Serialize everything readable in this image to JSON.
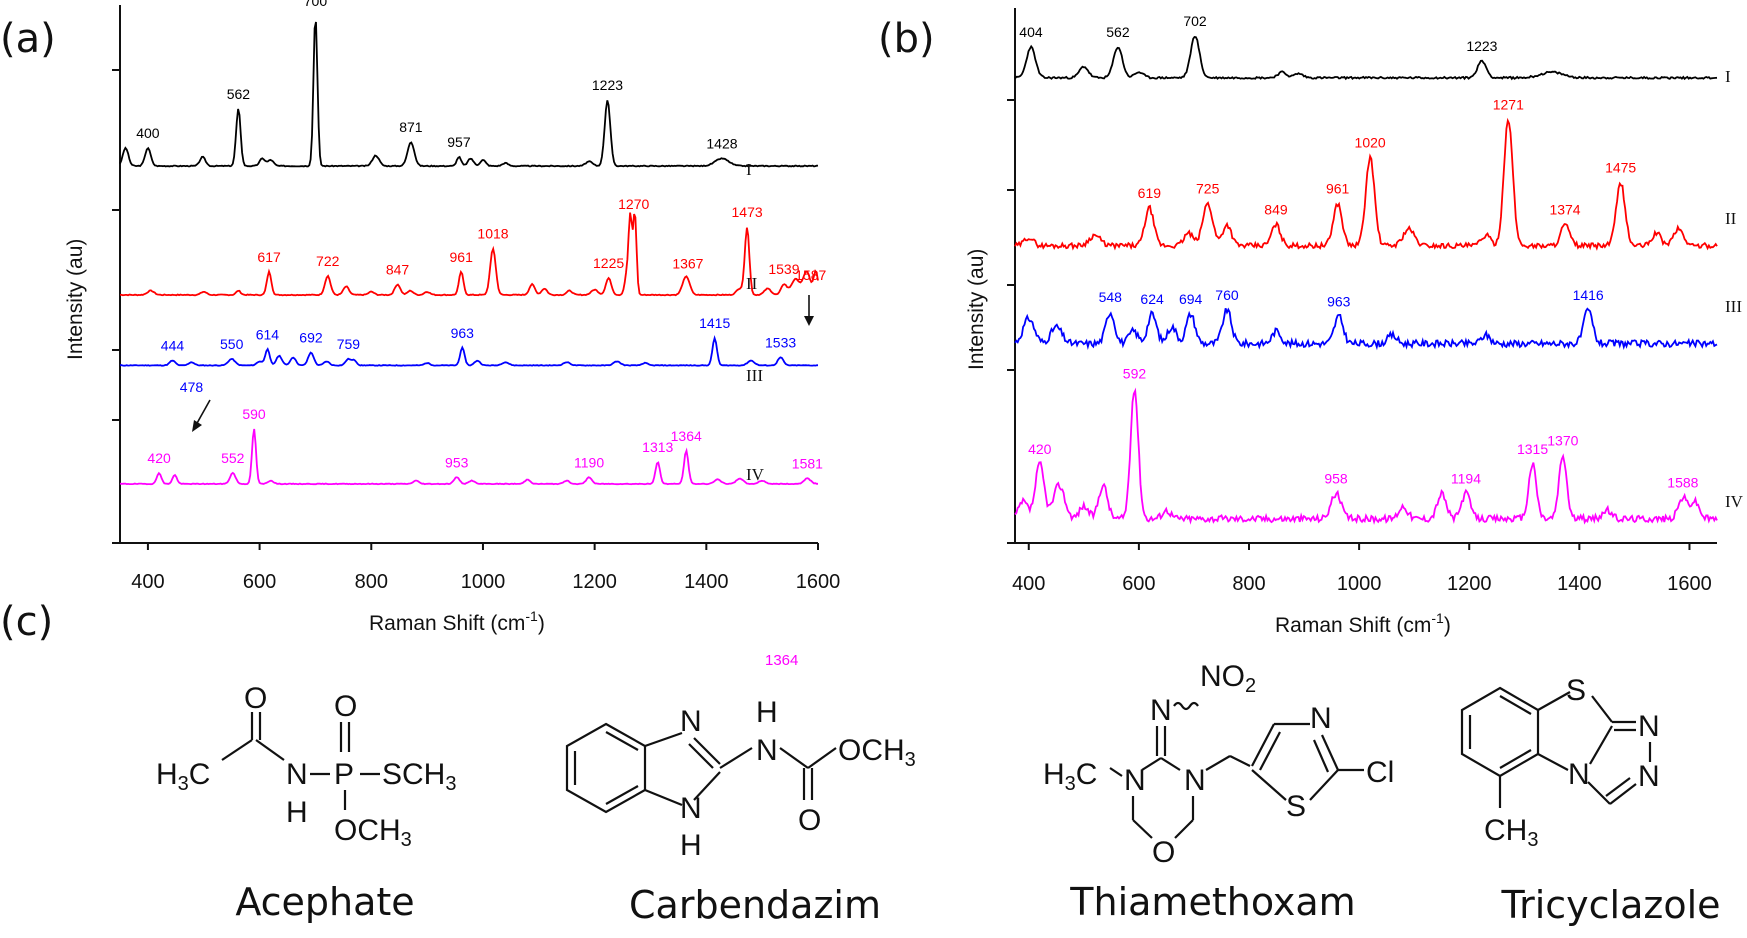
{
  "panel_labels": {
    "a": "(a)",
    "b": "(b)",
    "c": "(c)"
  },
  "stray_label": {
    "text": "1364",
    "color": "#ff00ff"
  },
  "chart_data": [
    {
      "type": "line",
      "panel": "(a)",
      "xlabel": "Raman Shift (cm-1)",
      "xlabel_main": "Raman Shift (cm",
      "xlabel_sup": "-1",
      "xlabel_close": ")",
      "ylabel": "Intensity (au)",
      "xlim": [
        350,
        1600
      ],
      "xticks": [
        400,
        600,
        800,
        1000,
        1200,
        1400,
        1600
      ],
      "grid": false,
      "series": [
        {
          "name": "I",
          "color": "#000000",
          "baseline": 0.06,
          "noise": 0.003,
          "seed": 3,
          "peaks": [
            [
              360,
              0.12,
              5
            ],
            [
              400,
              0.12,
              5
            ],
            [
              498,
              0.06,
              5
            ],
            [
              562,
              0.38,
              4
            ],
            [
              605,
              0.05,
              5
            ],
            [
              620,
              0.04,
              5
            ],
            [
              700,
              1.0,
              3.5
            ],
            [
              808,
              0.07,
              6
            ],
            [
              871,
              0.16,
              6
            ],
            [
              957,
              0.06,
              4
            ],
            [
              978,
              0.05,
              5
            ],
            [
              1000,
              0.04,
              5
            ],
            [
              1040,
              0.02,
              5
            ],
            [
              1190,
              0.03,
              6
            ],
            [
              1223,
              0.44,
              5
            ],
            [
              1428,
              0.05,
              12
            ]
          ],
          "labels": [
            [
              400,
              "400"
            ],
            [
              562,
              "562"
            ],
            [
              700,
              "700"
            ],
            [
              871,
              "871"
            ],
            [
              957,
              "957"
            ],
            [
              1223,
              "1223"
            ],
            [
              1428,
              "1428"
            ]
          ]
        },
        {
          "name": "II",
          "color": "#ff0000",
          "baseline": 0.02,
          "noise": 0.004,
          "seed": 7,
          "peaks": [
            [
              405,
              0.04,
              6
            ],
            [
              500,
              0.03,
              5
            ],
            [
              562,
              0.04,
              4
            ],
            [
              617,
              0.22,
              4
            ],
            [
              722,
              0.18,
              5
            ],
            [
              755,
              0.08,
              5
            ],
            [
              800,
              0.03,
              5
            ],
            [
              847,
              0.1,
              5
            ],
            [
              870,
              0.04,
              5
            ],
            [
              900,
              0.03,
              5
            ],
            [
              961,
              0.22,
              4
            ],
            [
              1018,
              0.44,
              5
            ],
            [
              1088,
              0.1,
              5
            ],
            [
              1110,
              0.06,
              5
            ],
            [
              1155,
              0.04,
              5
            ],
            [
              1200,
              0.05,
              6
            ],
            [
              1225,
              0.16,
              5
            ],
            [
              1258,
              0.2,
              4
            ],
            [
              1264,
              0.7,
              3
            ],
            [
              1272,
              0.78,
              3
            ],
            [
              1360,
              0.1,
              5
            ],
            [
              1367,
              0.12,
              5
            ],
            [
              1460,
              0.06,
              6
            ],
            [
              1473,
              0.64,
              4
            ],
            [
              1510,
              0.06,
              6
            ],
            [
              1539,
              0.1,
              5
            ],
            [
              1560,
              0.15,
              8
            ],
            [
              1580,
              0.22,
              6
            ],
            [
              1596,
              0.22,
              4
            ]
          ],
          "labels": [
            [
              617,
              "617"
            ],
            [
              722,
              "722"
            ],
            [
              847,
              "847"
            ],
            [
              961,
              "961"
            ],
            [
              1018,
              "1018"
            ],
            [
              1225,
              "1225"
            ],
            [
              1270,
              "1270"
            ],
            [
              1367,
              "1367"
            ],
            [
              1473,
              "1473"
            ],
            [
              1539,
              "1539"
            ],
            [
              1587,
              "1587"
            ]
          ]
        },
        {
          "name": "III",
          "color": "#0000ff",
          "baseline": 0.02,
          "noise": 0.004,
          "seed": 11,
          "peaks": [
            [
              444,
              0.06,
              5
            ],
            [
              478,
              0.04,
              5
            ],
            [
              550,
              0.08,
              6
            ],
            [
              600,
              0.05,
              5
            ],
            [
              614,
              0.2,
              4
            ],
            [
              635,
              0.12,
              5
            ],
            [
              660,
              0.1,
              5
            ],
            [
              692,
              0.16,
              5
            ],
            [
              720,
              0.05,
              5
            ],
            [
              759,
              0.08,
              5
            ],
            [
              770,
              0.06,
              4
            ],
            [
              900,
              0.03,
              5
            ],
            [
              963,
              0.22,
              4
            ],
            [
              990,
              0.06,
              5
            ],
            [
              1040,
              0.04,
              6
            ],
            [
              1150,
              0.04,
              6
            ],
            [
              1240,
              0.05,
              6
            ],
            [
              1290,
              0.03,
              5
            ],
            [
              1415,
              0.34,
              4
            ],
            [
              1480,
              0.06,
              6
            ],
            [
              1533,
              0.1,
              5
            ]
          ],
          "labels": [
            [
              444,
              "444"
            ],
            [
              478,
              "478"
            ],
            [
              550,
              "550"
            ],
            [
              614,
              "614"
            ],
            [
              692,
              "692"
            ],
            [
              759,
              "759"
            ],
            [
              963,
              "963"
            ],
            [
              1415,
              "1415"
            ],
            [
              1533,
              "1533"
            ]
          ]
        },
        {
          "name": "IV",
          "color": "#ff00ff",
          "baseline": 0.01,
          "noise": 0.003,
          "seed": 19,
          "peaks": [
            [
              420,
              0.1,
              4
            ],
            [
              448,
              0.08,
              4
            ],
            [
              552,
              0.1,
              5
            ],
            [
              590,
              0.5,
              3.5
            ],
            [
              620,
              0.03,
              5
            ],
            [
              880,
              0.03,
              5
            ],
            [
              953,
              0.06,
              5
            ],
            [
              980,
              0.03,
              5
            ],
            [
              1080,
              0.04,
              5
            ],
            [
              1150,
              0.03,
              5
            ],
            [
              1190,
              0.06,
              5
            ],
            [
              1313,
              0.2,
              4
            ],
            [
              1364,
              0.3,
              4
            ],
            [
              1420,
              0.04,
              6
            ],
            [
              1460,
              0.05,
              6
            ],
            [
              1500,
              0.03,
              6
            ],
            [
              1581,
              0.05,
              6
            ]
          ],
          "labels": [
            [
              420,
              "420"
            ],
            [
              552,
              "552"
            ],
            [
              590,
              "590"
            ],
            [
              953,
              "953"
            ],
            [
              1190,
              "1190"
            ],
            [
              1313,
              "1313"
            ],
            [
              1364,
              "1364"
            ],
            [
              1581,
              "1581"
            ]
          ]
        }
      ]
    },
    {
      "type": "line",
      "panel": "(b)",
      "xlabel": "Raman Shift (cm-1)",
      "xlabel_main": "Raman Shift (cm",
      "xlabel_sup": "-1",
      "xlabel_close": ")",
      "ylabel": "Intensity (au)",
      "xlim": [
        375,
        1650
      ],
      "xticks": [
        400,
        600,
        800,
        1000,
        1200,
        1400,
        1600
      ],
      "grid": false,
      "series": [
        {
          "name": "I",
          "color": "#000000",
          "baseline": 0.03,
          "noise": 0.007,
          "seed": 23,
          "peaks": [
            [
              404,
              0.22,
              8
            ],
            [
              500,
              0.08,
              8
            ],
            [
              562,
              0.22,
              8
            ],
            [
              600,
              0.04,
              8
            ],
            [
              702,
              0.3,
              8
            ],
            [
              860,
              0.04,
              8
            ],
            [
              890,
              0.03,
              8
            ],
            [
              1223,
              0.12,
              8
            ],
            [
              1350,
              0.04,
              20
            ]
          ],
          "labels": [
            [
              404,
              "404"
            ],
            [
              562,
              "562"
            ],
            [
              702,
              "702"
            ],
            [
              1223,
              "1223"
            ]
          ]
        },
        {
          "name": "II",
          "color": "#ff0000",
          "baseline": 0.03,
          "noise": 0.012,
          "seed": 29,
          "peaks": [
            [
              400,
              0.04,
              8
            ],
            [
              520,
              0.05,
              10
            ],
            [
              619,
              0.18,
              8
            ],
            [
              690,
              0.06,
              8
            ],
            [
              725,
              0.2,
              9
            ],
            [
              760,
              0.1,
              8
            ],
            [
              849,
              0.1,
              8
            ],
            [
              961,
              0.2,
              8
            ],
            [
              1020,
              0.42,
              8
            ],
            [
              1090,
              0.08,
              10
            ],
            [
              1230,
              0.05,
              8
            ],
            [
              1271,
              0.6,
              8
            ],
            [
              1374,
              0.1,
              8
            ],
            [
              1475,
              0.3,
              8
            ],
            [
              1540,
              0.06,
              8
            ],
            [
              1580,
              0.08,
              9
            ]
          ],
          "labels": [
            [
              619,
              "619"
            ],
            [
              725,
              "725"
            ],
            [
              849,
              "849"
            ],
            [
              961,
              "961"
            ],
            [
              1020,
              "1020"
            ],
            [
              1271,
              "1271"
            ],
            [
              1374,
              "1374"
            ],
            [
              1475,
              "1475"
            ]
          ]
        },
        {
          "name": "III",
          "color": "#0000ff",
          "baseline": 0.04,
          "noise": 0.016,
          "seed": 31,
          "peaks": [
            [
              400,
              0.12,
              10
            ],
            [
              450,
              0.08,
              10
            ],
            [
              548,
              0.15,
              8
            ],
            [
              590,
              0.06,
              8
            ],
            [
              624,
              0.14,
              8
            ],
            [
              660,
              0.08,
              8
            ],
            [
              694,
              0.14,
              8
            ],
            [
              760,
              0.16,
              8
            ],
            [
              850,
              0.06,
              8
            ],
            [
              963,
              0.13,
              8
            ],
            [
              1060,
              0.04,
              8
            ],
            [
              1230,
              0.04,
              8
            ],
            [
              1416,
              0.16,
              8
            ]
          ],
          "labels": [
            [
              548,
              "548"
            ],
            [
              624,
              "624"
            ],
            [
              694,
              "694"
            ],
            [
              760,
              "760"
            ],
            [
              963,
              "963"
            ],
            [
              1416,
              "1416"
            ]
          ]
        },
        {
          "name": "IV",
          "color": "#ff00ff",
          "baseline": 0.03,
          "noise": 0.016,
          "seed": 37,
          "peaks": [
            [
              390,
              0.08,
              8
            ],
            [
              420,
              0.26,
              8
            ],
            [
              455,
              0.16,
              10
            ],
            [
              500,
              0.06,
              8
            ],
            [
              535,
              0.16,
              8
            ],
            [
              592,
              0.62,
              7
            ],
            [
              650,
              0.04,
              8
            ],
            [
              958,
              0.12,
              9
            ],
            [
              1080,
              0.06,
              8
            ],
            [
              1150,
              0.12,
              8
            ],
            [
              1194,
              0.12,
              8
            ],
            [
              1315,
              0.26,
              7
            ],
            [
              1370,
              0.3,
              7
            ],
            [
              1450,
              0.04,
              8
            ],
            [
              1588,
              0.1,
              8
            ],
            [
              1610,
              0.08,
              8
            ]
          ],
          "labels": [
            [
              420,
              "420"
            ],
            [
              592,
              "592"
            ],
            [
              958,
              "958"
            ],
            [
              1194,
              "1194"
            ],
            [
              1315,
              "1315"
            ],
            [
              1370,
              "1370"
            ],
            [
              1588,
              "1588"
            ]
          ]
        }
      ]
    }
  ],
  "compounds": [
    {
      "name": "Acephate"
    },
    {
      "name": "Carbendazim"
    },
    {
      "name": "Thiamethoxam"
    },
    {
      "name": "Tricyclazole"
    }
  ],
  "structure_text": {
    "acephate": {
      "O1": "O",
      "O2": "O",
      "H3C": "H",
      "sub3": "3",
      "C": "C",
      "N": "N",
      "H": "H",
      "P": "P",
      "SCH3": "SCH",
      "s3": "3",
      "OCH3": "OCH",
      "o3": "3"
    },
    "carbendazim": {
      "N1": "N",
      "N2": "N",
      "H1": "H",
      "H2": "H",
      "N3": "N",
      "H3": "H",
      "O1": "O",
      "OCH3": "OCH",
      "o3": "3"
    },
    "thiamethoxam": {
      "N1": "N",
      "NO2": "NO",
      "n2": "2",
      "H3C": "H",
      "h3": "3",
      "C": "C",
      "N2": "N",
      "N3": "N",
      "O": "O",
      "N4": "N",
      "S": "S",
      "Cl": "Cl"
    },
    "tricyclazole": {
      "S": "S",
      "N1": "N",
      "N2": "N",
      "N3": "N",
      "CH3": "CH",
      "c3": "3"
    }
  }
}
